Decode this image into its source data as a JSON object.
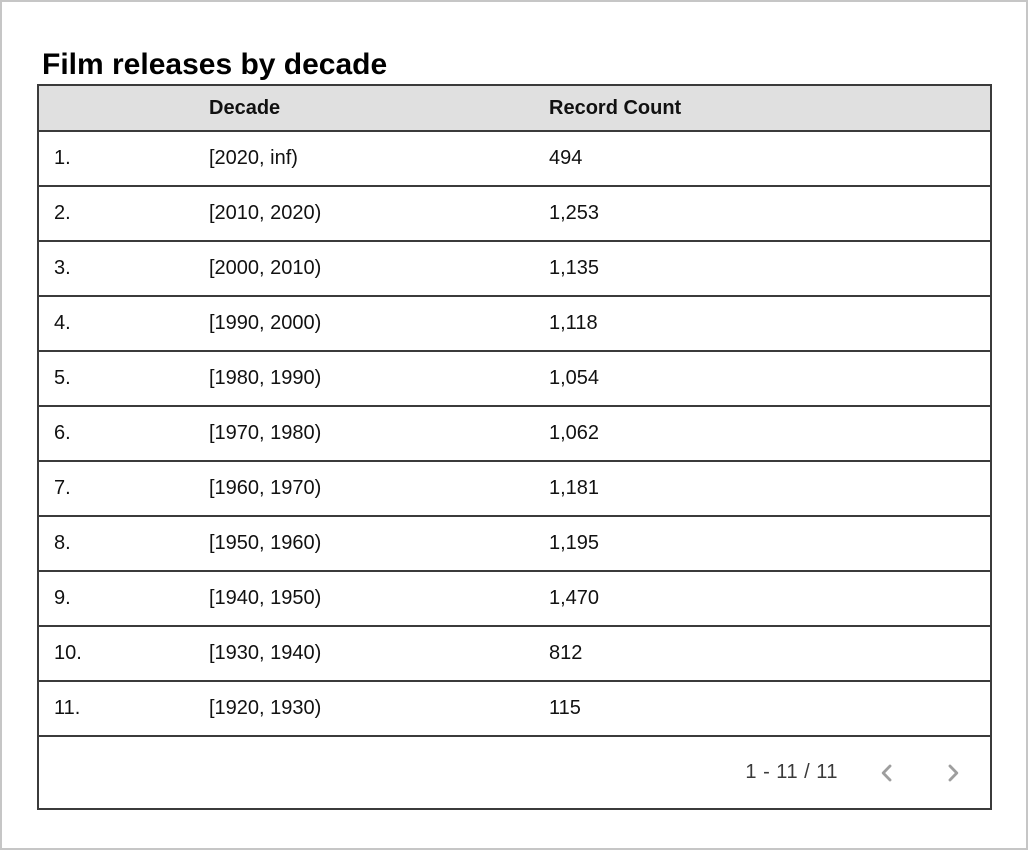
{
  "title": "Film releases by decade",
  "colors": {
    "header_bg": "#e0e0e0",
    "border": "#3b3b3b",
    "chevron": "#9e9e9e",
    "frame": "#c6c6c6"
  },
  "table": {
    "columns": [
      "Decade",
      "Record Count"
    ],
    "rows": [
      {
        "index": "1.",
        "decade": "[2020, inf)",
        "count": "494"
      },
      {
        "index": "2.",
        "decade": "[2010, 2020)",
        "count": "1,253"
      },
      {
        "index": "3.",
        "decade": "[2000, 2010)",
        "count": "1,135"
      },
      {
        "index": "4.",
        "decade": "[1990, 2000)",
        "count": "1,118"
      },
      {
        "index": "5.",
        "decade": "[1980, 1990)",
        "count": "1,054"
      },
      {
        "index": "6.",
        "decade": "[1970, 1980)",
        "count": "1,062"
      },
      {
        "index": "7.",
        "decade": "[1960, 1970)",
        "count": "1,181"
      },
      {
        "index": "8.",
        "decade": "[1950, 1960)",
        "count": "1,195"
      },
      {
        "index": "9.",
        "decade": "[1940, 1950)",
        "count": "1,470"
      },
      {
        "index": "10.",
        "decade": "[1930, 1940)",
        "count": "812"
      },
      {
        "index": "11.",
        "decade": "[1920, 1930)",
        "count": "115"
      }
    ],
    "pagination": {
      "range_label": "1 - 11 / 11",
      "prev_icon": "chevron-left",
      "next_icon": "chevron-right"
    }
  },
  "chart_data": {
    "type": "table",
    "title": "Film releases by decade",
    "columns": [
      "Decade",
      "Record Count"
    ],
    "categories": [
      "[2020, inf)",
      "[2010, 2020)",
      "[2000, 2010)",
      "[1990, 2000)",
      "[1980, 1990)",
      "[1970, 1980)",
      "[1960, 1970)",
      "[1950, 1960)",
      "[1940, 1950)",
      "[1930, 1940)",
      "[1920, 1930)"
    ],
    "values": [
      494,
      1253,
      1135,
      1118,
      1054,
      1062,
      1181,
      1195,
      1470,
      812,
      115
    ],
    "pagination": "1 - 11 / 11"
  }
}
